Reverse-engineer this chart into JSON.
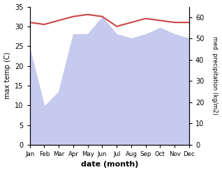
{
  "months": [
    "Jan",
    "Feb",
    "Mar",
    "Apr",
    "May",
    "Jun",
    "Jul",
    "Aug",
    "Sep",
    "Oct",
    "Nov",
    "Dec"
  ],
  "max_temp": [
    31.0,
    30.5,
    31.5,
    32.5,
    33.0,
    32.5,
    30.0,
    31.0,
    32.0,
    31.5,
    31.0,
    31.0
  ],
  "precipitation_kg": [
    45,
    18,
    25,
    52,
    52,
    60,
    52,
    50,
    52,
    55,
    52,
    50
  ],
  "temp_color": "#cc4444",
  "precip_fill_color": "#c5caee",
  "precip_edge_color": "#c5caee",
  "temp_ylim": [
    0,
    35
  ],
  "precip_ylim": [
    0,
    65
  ],
  "temp_yticks": [
    0,
    5,
    10,
    15,
    20,
    25,
    30,
    35
  ],
  "precip_yticks": [
    0,
    10,
    20,
    30,
    40,
    50,
    60
  ],
  "xlabel": "date (month)",
  "ylabel_left": "max temp (C)",
  "ylabel_right": "med. precipitation (kg/m2)",
  "bg_color": "#ffffff"
}
